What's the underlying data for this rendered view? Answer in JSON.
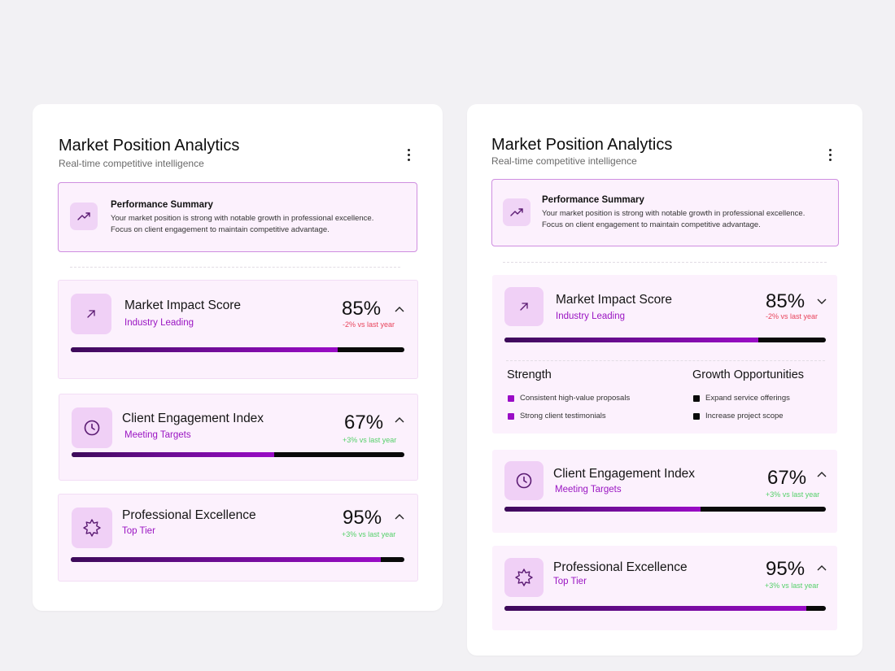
{
  "colors": {
    "accent": "#9a0cc6",
    "negative": "#e8445b",
    "positive": "#55d06a",
    "card_bg": "#fcf1fd",
    "page_bg": "#f2f1f4"
  },
  "panels": [
    {
      "title": "Market Position Analytics",
      "subtitle": "Real-time competitive intelligence",
      "menu_icon": "more-vertical-icon",
      "summary": {
        "icon": "trend-up-icon",
        "title": "Performance Summary",
        "line1": "Your market position is strong with notable growth in professional excellence.",
        "line2": "Focus on client engagement to maintain competitive advantage."
      },
      "metrics": [
        {
          "name": "Market Impact Score",
          "status": "Industry Leading",
          "value": "85%",
          "delta": "-2% vs last year",
          "trend": "negative",
          "progress": 0.8,
          "expanded": false,
          "icon": "arrow-up-right-icon"
        },
        {
          "name": "Client Engagement Index",
          "status": "Meeting Targets",
          "value": "67%",
          "delta": "+3% vs last year",
          "trend": "positive",
          "progress": 0.61,
          "expanded": false,
          "icon": "clock-icon"
        },
        {
          "name": "Professional Excellence",
          "status": "Top Tier",
          "value": "95%",
          "delta": "+3% vs last year",
          "trend": "positive",
          "progress": 0.93,
          "expanded": false,
          "icon": "badge-icon"
        }
      ]
    },
    {
      "title": "Market Position Analytics",
      "subtitle": "Real-time competitive intelligence",
      "menu_icon": "more-vertical-icon",
      "summary": {
        "icon": "trend-up-icon",
        "title": "Performance Summary",
        "line1": "Your market position is strong with notable growth in professional excellence.",
        "line2": "Focus on client engagement to maintain competitive advantage."
      },
      "metrics": [
        {
          "name": "Market Impact Score",
          "status": "Industry Leading",
          "value": "85%",
          "delta": "-2% vs last year",
          "trend": "negative",
          "progress": 0.79,
          "expanded": true,
          "icon": "arrow-up-right-icon",
          "details": {
            "strength_title": "Strength",
            "strengths": [
              "Consistent high-value proposals",
              "Strong client testimonials"
            ],
            "growth_title": "Growth Opportunities",
            "growth": [
              "Expand service offerings",
              "Increase project scope"
            ]
          }
        },
        {
          "name": "Client Engagement Index",
          "status": "Meeting Targets",
          "value": "67%",
          "delta": "+3% vs last year",
          "trend": "positive",
          "progress": 0.61,
          "expanded": false,
          "icon": "clock-icon"
        },
        {
          "name": "Professional Excellence",
          "status": "Top Tier",
          "value": "95%",
          "delta": "+3% vs last year",
          "trend": "positive",
          "progress": 0.94,
          "expanded": false,
          "icon": "badge-icon"
        }
      ]
    }
  ]
}
